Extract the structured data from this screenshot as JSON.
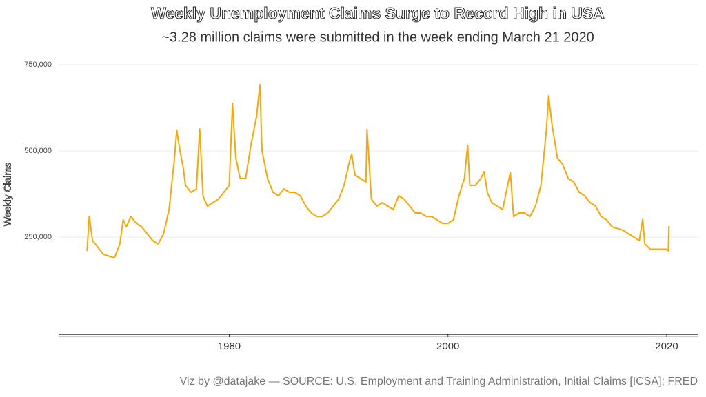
{
  "chart_data": {
    "type": "line",
    "title": "Weekly Unemployment Claims Surge to Record High in USA",
    "subtitle": "~3.28 million claims were submitted in the week ending March 21 2020",
    "y_label": "Weekly Claims",
    "caption": "Viz by @datajake — SOURCE: U.S. Employment and Training Administration, Initial Claims [ICSA]; FRED",
    "xlim": [
      1964.4,
      2022.9
    ],
    "ylim": [
      -32000,
      770000
    ],
    "xticks": [
      1980,
      2000,
      2020
    ],
    "yticks": [
      {
        "value": 250000,
        "label": "250,000"
      },
      {
        "value": 500000,
        "label": "500,000"
      },
      {
        "value": 750000,
        "label": "750,000"
      }
    ],
    "grid": true,
    "x": [
      1967.0,
      1967.2,
      1967.5,
      1968,
      1968.5,
      1969,
      1969.5,
      1970,
      1970.3,
      1970.6,
      1971,
      1971.5,
      1972,
      1972.5,
      1973,
      1973.5,
      1974,
      1974.5,
      1975,
      1975.2,
      1975.5,
      1975.8,
      1976,
      1976.5,
      1977,
      1977.3,
      1977.6,
      1978,
      1978.5,
      1979,
      1979.5,
      1980,
      1980.3,
      1980.6,
      1981,
      1981.5,
      1982,
      1982.5,
      1982.8,
      1983,
      1983.5,
      1984,
      1984.5,
      1985,
      1985.5,
      1986,
      1986.5,
      1987,
      1987.5,
      1988,
      1988.5,
      1989,
      1989.5,
      1990,
      1990.5,
      1991,
      1991.2,
      1991.5,
      1992,
      1992.5,
      1992.6,
      1993,
      1993.5,
      1994,
      1994.5,
      1995,
      1995.5,
      1996,
      1996.5,
      1997,
      1997.5,
      1998,
      1998.5,
      1999,
      1999.5,
      2000,
      2000.5,
      2001,
      2001.5,
      2001.8,
      2002,
      2002.5,
      2003,
      2003.3,
      2003.6,
      2004,
      2004.5,
      2005,
      2005.7,
      2006,
      2006.5,
      2007,
      2007.5,
      2008,
      2008.5,
      2009,
      2009.2,
      2009.5,
      2010,
      2010.5,
      2011,
      2011.5,
      2012,
      2012.5,
      2013,
      2013.5,
      2014,
      2014.5,
      2015,
      2015.5,
      2016,
      2016.5,
      2017,
      2017.5,
      2017.8,
      2018,
      2018.5,
      2019,
      2019.5,
      2020,
      2020.15,
      2020.2
    ],
    "series": [
      {
        "name": "Weekly Claims",
        "color": "#ffa500",
        "values": [
          210000,
          310000,
          240000,
          220000,
          200000,
          195000,
          190000,
          230000,
          300000,
          280000,
          310000,
          290000,
          280000,
          260000,
          240000,
          230000,
          260000,
          330000,
          480000,
          560000,
          500000,
          450000,
          400000,
          380000,
          390000,
          564000,
          370000,
          340000,
          350000,
          360000,
          380000,
          400000,
          638000,
          480000,
          420000,
          420000,
          520000,
          600000,
          692000,
          500000,
          420000,
          380000,
          370000,
          390000,
          380000,
          380000,
          370000,
          340000,
          320000,
          310000,
          310000,
          320000,
          340000,
          360000,
          400000,
          470000,
          490000,
          430000,
          420000,
          410000,
          562000,
          360000,
          340000,
          350000,
          340000,
          330000,
          370000,
          360000,
          340000,
          320000,
          320000,
          310000,
          310000,
          300000,
          290000,
          290000,
          300000,
          370000,
          420000,
          516000,
          400000,
          400000,
          420000,
          440000,
          380000,
          350000,
          340000,
          330000,
          438000,
          310000,
          320000,
          320000,
          310000,
          340000,
          400000,
          560000,
          660000,
          580000,
          480000,
          460000,
          420000,
          410000,
          380000,
          370000,
          350000,
          340000,
          310000,
          300000,
          280000,
          275000,
          270000,
          260000,
          250000,
          240000,
          302000,
          230000,
          215000,
          215000,
          215000,
          215000,
          210000,
          282000
        ]
      }
    ]
  }
}
